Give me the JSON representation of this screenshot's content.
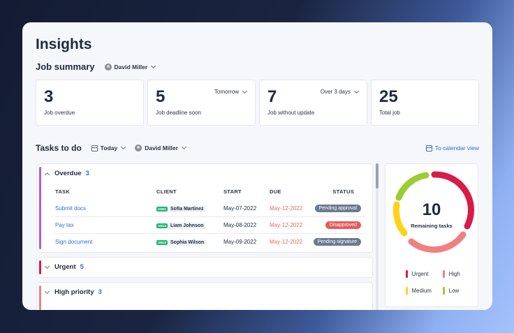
{
  "page_title": "Insights",
  "job_summary": {
    "heading": "Job summary",
    "user": "David Miller",
    "stats": [
      {
        "value": "3",
        "label": "Job overdue",
        "selector": ""
      },
      {
        "value": "5",
        "label": "Job deadline soon",
        "selector": "Tomorrow"
      },
      {
        "value": "7",
        "label": "Job without update",
        "selector": "Over 3 days"
      },
      {
        "value": "25",
        "label": "Total job",
        "selector": ""
      }
    ]
  },
  "tasks": {
    "heading": "Tasks to do",
    "date_filter": "Today",
    "user_filter": "David Miller",
    "calendar_link": "To calendar view",
    "columns": {
      "task": "TASK",
      "client": "CLIENT",
      "start": "START",
      "due": "DUE",
      "status": "STATUS"
    },
    "groups": [
      {
        "name": "Overdue",
        "count": "3",
        "color": "#b35ad6",
        "expanded": true,
        "rows": [
          {
            "task": "Submit docs",
            "client_tag": "AM01",
            "client": "Sofia Martinez",
            "start": "May-07-2022",
            "due": "May-12-2022",
            "status": "Pending approval",
            "status_color": "#6b7a90"
          },
          {
            "task": "Pay tax",
            "client_tag": "AM14",
            "client": "Liam Johnson",
            "start": "May-08-2022",
            "due": "May-12-2022",
            "status": "Disapproved",
            "status_color": "#e85a5a"
          },
          {
            "task": "Sign document",
            "client_tag": "AM13",
            "client": "Sophia Wilson",
            "start": "May-09-2022",
            "due": "May-12-2022",
            "status": "Pending signature",
            "status_color": "#6b7a90"
          }
        ]
      },
      {
        "name": "Urgent",
        "count": "5",
        "color": "#d81b47",
        "expanded": false
      },
      {
        "name": "High priority",
        "count": "3",
        "color": "#f08080",
        "expanded": false
      }
    ]
  },
  "remaining": {
    "value": "10",
    "label": "Remaining tasks",
    "legend": [
      {
        "name": "Urgent",
        "color": "#d81b47"
      },
      {
        "name": "High",
        "color": "#f08080"
      },
      {
        "name": "Medium",
        "color": "#ffd21a"
      },
      {
        "name": "Low",
        "color": "#9acd32"
      }
    ]
  }
}
